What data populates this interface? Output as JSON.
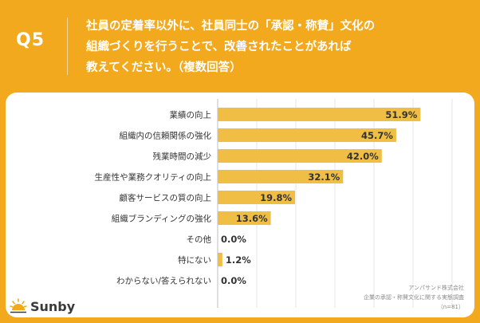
{
  "header": {
    "q_label": "Q5",
    "question": "社員の定着率以外に、社員同士の「承認・称賛」文化の\n組織づくりを行うことで、改善されたことがあれば\n教えてください。（複数回答）"
  },
  "brand": {
    "name": "Sunby",
    "logo_icon": "sun-icon"
  },
  "source": {
    "line1": "アンパサンド株式会社",
    "line2": "企業の承認・称賛文化に関する実態調査",
    "line3": "（n=81）"
  },
  "colors": {
    "background": "#F2A91D",
    "bar": "#F0BE45",
    "text": "#333333"
  },
  "chart_data": {
    "type": "bar",
    "orientation": "horizontal",
    "categories": [
      "業績の向上",
      "組織内の信頼関係の強化",
      "残業時間の減少",
      "生産性や業務クオリティの向上",
      "顧客サービスの質の向上",
      "組織ブランディングの強化",
      "その他",
      "特にない",
      "わからない/答えられない"
    ],
    "values": [
      51.9,
      45.7,
      42.0,
      32.1,
      19.8,
      13.6,
      0.0,
      1.2,
      0.0
    ],
    "value_labels": [
      "51.9%",
      "45.7%",
      "42.0%",
      "32.1%",
      "19.8%",
      "13.6%",
      "0.0%",
      "1.2%",
      "0.0%"
    ],
    "xlim": [
      0,
      60
    ],
    "grid": true
  }
}
